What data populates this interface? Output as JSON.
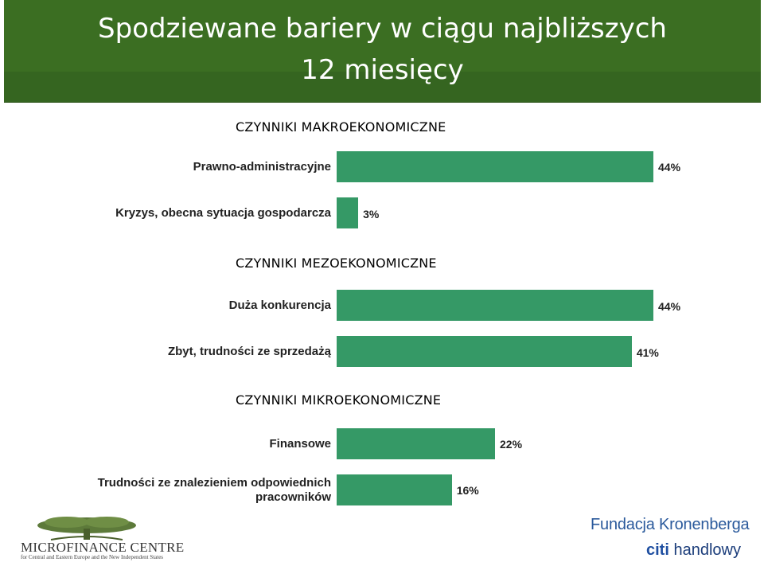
{
  "header": {
    "title_line1": "Spodziewane bariery w ciągu najbliższych",
    "title_line2": "12 miesięcy"
  },
  "chart_data": {
    "type": "bar",
    "orientation": "horizontal",
    "bar_color": "#359966",
    "xlim": [
      0,
      44
    ],
    "sections": [
      {
        "title": "CZYNNIKI MAKROEKONOMICZNE",
        "items": [
          {
            "label": "Prawno-administracyjne",
            "value": 44,
            "value_label": "44%"
          },
          {
            "label": "Kryzys, obecna sytuacja gospodarcza",
            "value": 3,
            "value_label": "3%"
          }
        ]
      },
      {
        "title": "CZYNNIKI MEZOEKONOMICZNE",
        "items": [
          {
            "label": "Duża konkurencja",
            "value": 44,
            "value_label": "44%"
          },
          {
            "label": "Zbyt, trudności ze sprzedażą",
            "value": 41,
            "value_label": "41%"
          }
        ]
      },
      {
        "title": "CZYNNIKI MIKROEKONOMICZNE",
        "items": [
          {
            "label": "Finansowe",
            "value": 22,
            "value_label": "22%"
          },
          {
            "label": "Trudności ze znalezieniem odpowiednich pracowników",
            "value": 16,
            "value_label": "16%"
          }
        ]
      }
    ]
  },
  "footer": {
    "left_logo_name": "MICROFINANCE CENTRE",
    "left_logo_sub": "for Central and Eastern Europe and the New Independent States",
    "right_logo_line1": "Fundacja Kronenberga",
    "right_logo_citi": "citi",
    "right_logo_line2": "handlowy"
  }
}
